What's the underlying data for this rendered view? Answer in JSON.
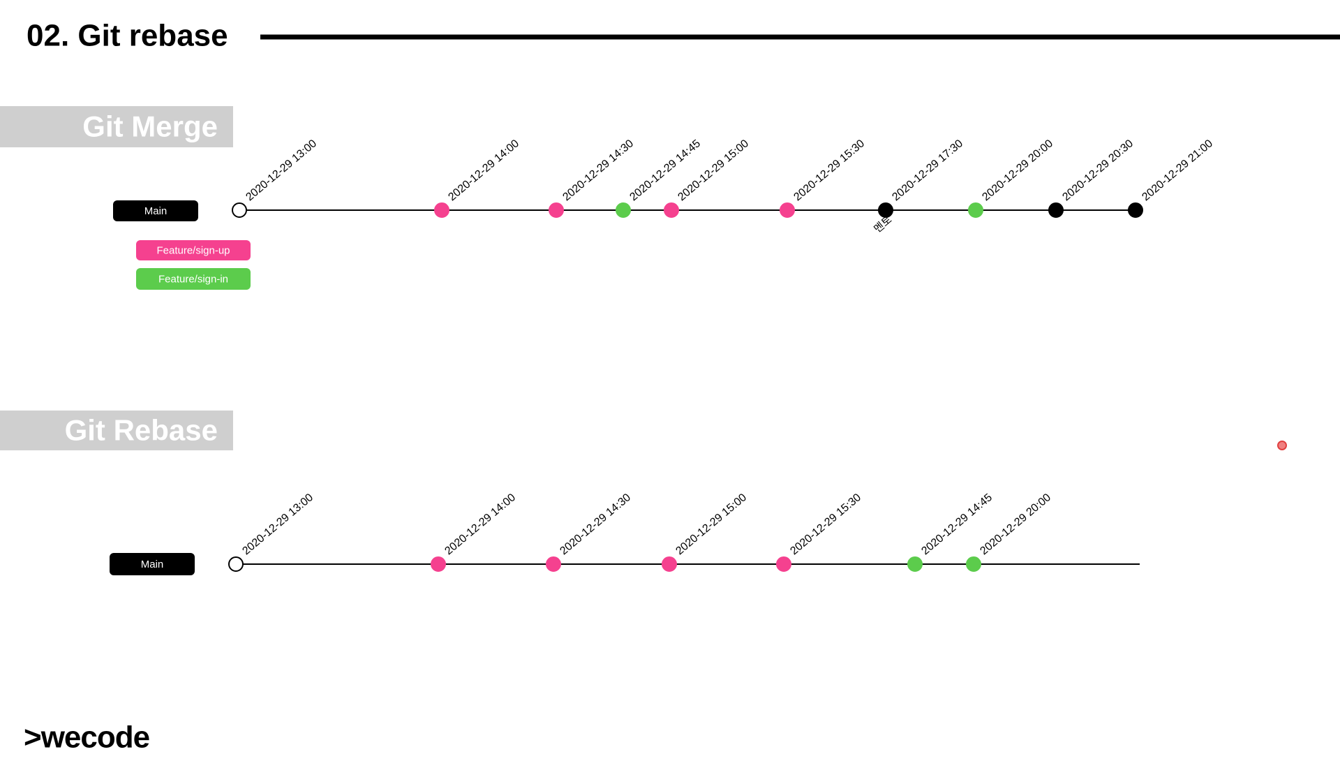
{
  "header": {
    "title": "02. Git rebase"
  },
  "sections": [
    {
      "title": "Git Merge",
      "branches": [
        {
          "label": "Main",
          "color": "#000000"
        },
        {
          "label": "Feature/sign-up",
          "color": "#f5418f"
        },
        {
          "label": "Feature/sign-in",
          "color": "#5ccc4c"
        }
      ],
      "commits": [
        {
          "label": "2020-12-29 13:00",
          "color": "#ffffff"
        },
        {
          "label": "2020-12-29 14:00",
          "color": "#f5418f"
        },
        {
          "label": "2020-12-29 14:30",
          "color": "#f5418f"
        },
        {
          "label": "2020-12-29 14:45",
          "color": "#5ccc4c"
        },
        {
          "label": "2020-12-29 15:00",
          "color": "#f5418f"
        },
        {
          "label": "2020-12-29 15:30",
          "color": "#f5418f"
        },
        {
          "label": "2020-12-29 17:30",
          "color": "#000000",
          "note": "멘토"
        },
        {
          "label": "2020-12-29 20:00",
          "color": "#5ccc4c"
        },
        {
          "label": "2020-12-29 20:30",
          "color": "#000000"
        },
        {
          "label": "2020-12-29 21:00",
          "color": "#000000"
        }
      ]
    },
    {
      "title": "Git Rebase",
      "branches": [
        {
          "label": "Main",
          "color": "#000000"
        }
      ],
      "commits": [
        {
          "label": "2020-12-29 13:00",
          "color": "#ffffff"
        },
        {
          "label": "2020-12-29 14:00",
          "color": "#f5418f"
        },
        {
          "label": "2020-12-29 14:30",
          "color": "#f5418f"
        },
        {
          "label": "2020-12-29 15:00",
          "color": "#f5418f"
        },
        {
          "label": "2020-12-29 15:30",
          "color": "#f5418f"
        },
        {
          "label": "2020-12-29 14:45",
          "color": "#5ccc4c"
        },
        {
          "label": "2020-12-29 20:00",
          "color": "#5ccc4c"
        }
      ]
    }
  ],
  "footer": {
    "logo": ">wecode"
  }
}
